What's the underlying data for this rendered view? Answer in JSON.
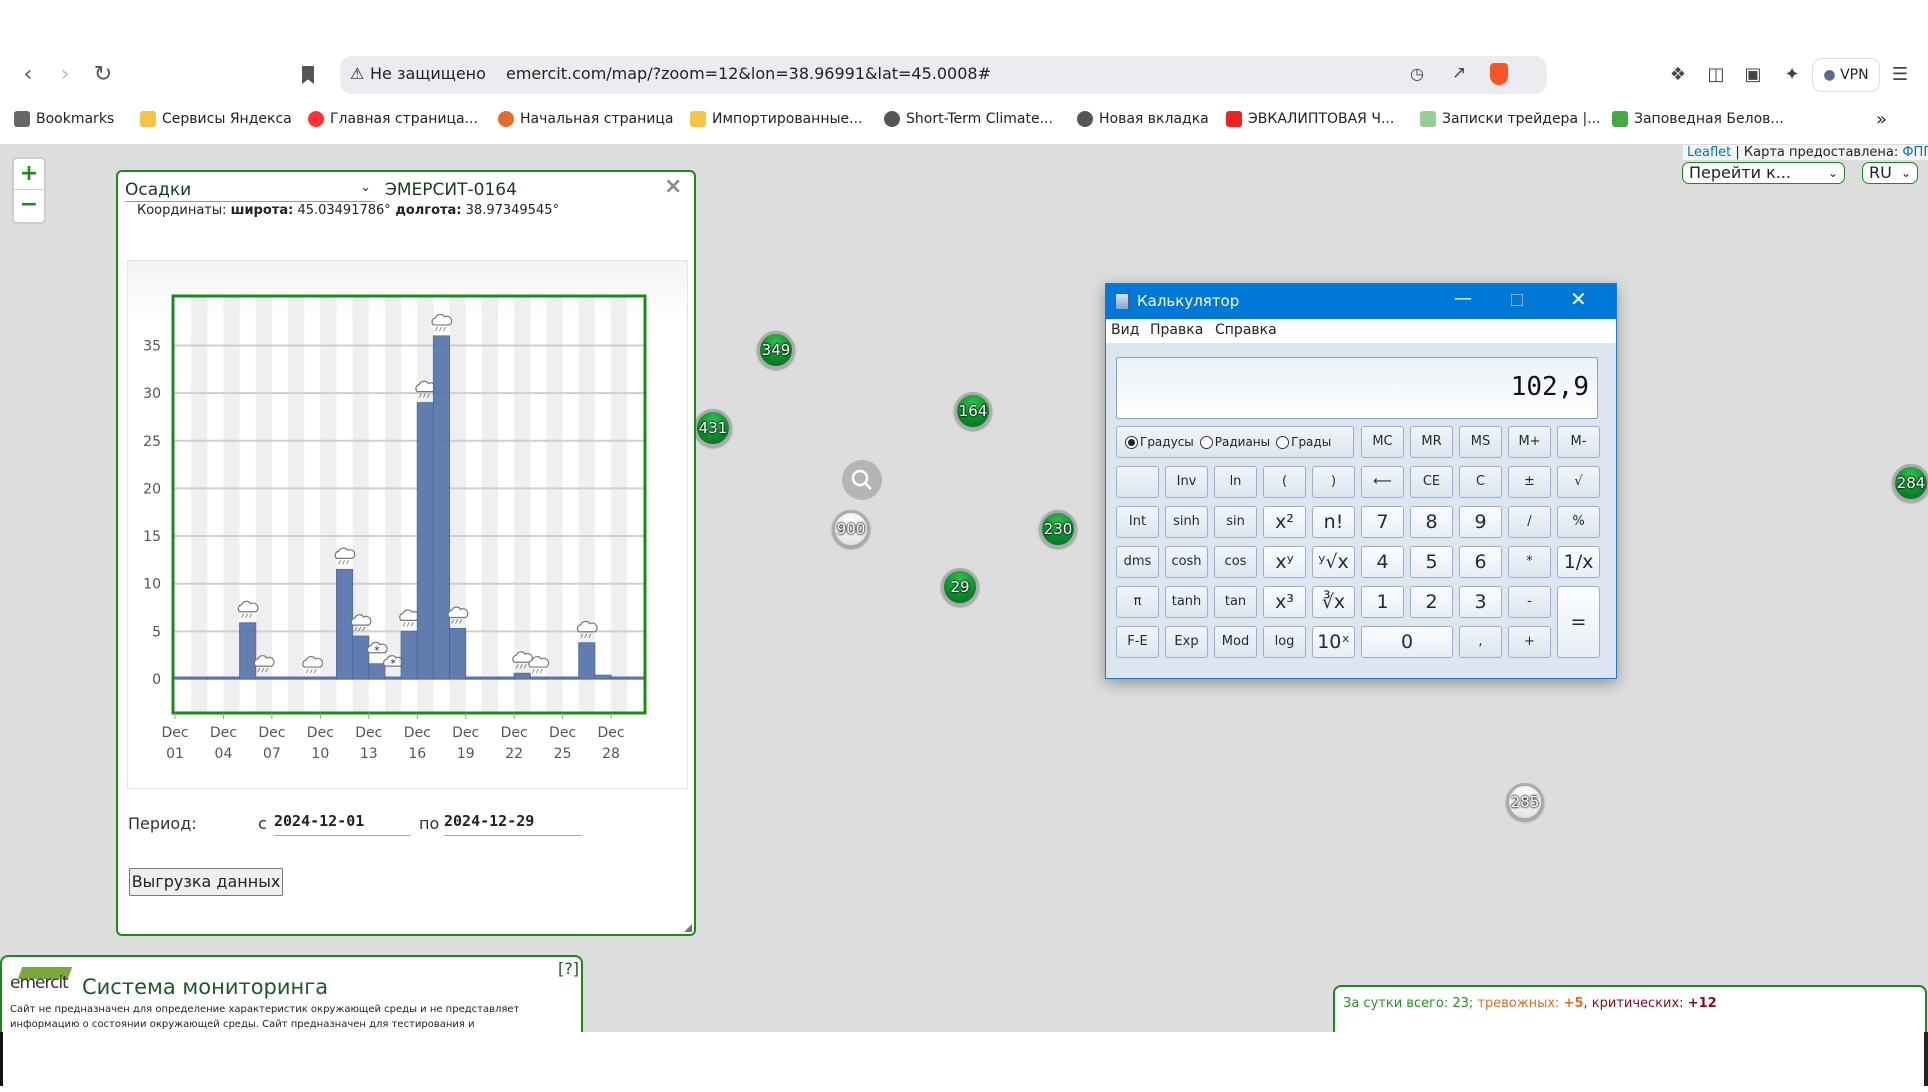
{
  "browser": {
    "security_label": "Не защищено",
    "url": "emercit.com/map/?zoom=12&lon=38.96991&lat=45.0008#",
    "vpn_label": "VPN",
    "bookmarks": [
      {
        "label": "Bookmarks",
        "icon": "book-icon"
      },
      {
        "label": "Сервисы Яндекса",
        "icon": "folder-icon"
      },
      {
        "label": "Главная страница...",
        "icon": "yandex-icon"
      },
      {
        "label": "Начальная страница",
        "icon": "firefox-icon"
      },
      {
        "label": "Импортированные...",
        "icon": "folder-icon"
      },
      {
        "label": "Short-Term Climate...",
        "icon": "globe-icon"
      },
      {
        "label": "Новая вкладка",
        "icon": "globe-icon"
      },
      {
        "label": "ЭВКАЛИПТОВАЯ Ч...",
        "icon": "flag-icon"
      },
      {
        "label": "Записки трейдера |...",
        "icon": "note-icon"
      },
      {
        "label": "Заповедная Белов...",
        "icon": "leaf-icon"
      }
    ],
    "more_label": "»"
  },
  "map": {
    "zoom_in": "+",
    "zoom_out": "−",
    "attribution_link": "Leaflet",
    "attribution_text": " | Карта предоставлена: ",
    "attribution_provider": "ФППД",
    "goto_select": "Перейти к...",
    "lang_select": "RU",
    "markers": [
      {
        "label": "349",
        "kind": "green"
      },
      {
        "label": "431",
        "kind": "green"
      },
      {
        "label": "164",
        "kind": "green"
      },
      {
        "label": "900",
        "kind": "white"
      },
      {
        "label": "230",
        "kind": "green"
      },
      {
        "label": "29",
        "kind": "green"
      },
      {
        "label": "284",
        "kind": "green"
      },
      {
        "label": "285",
        "kind": "white"
      }
    ]
  },
  "popup": {
    "parameter_select": "Осадки",
    "station": "ЭМЕРСИТ-0164",
    "coords_label": "Координаты: ",
    "lat_label": "широта:",
    "lat_value": " 45.03491786°",
    "lon_label": " долгота:",
    "lon_value": " 38.97349545°",
    "close": "×",
    "period_label": "Период:",
    "from_label": "с",
    "from_value": "2024-12-01",
    "to_label": "по",
    "to_value": "2024-12-29",
    "export_button": "Выгрузка данных"
  },
  "chart_data": {
    "type": "bar",
    "categories": [
      "Dec 01",
      "Dec 02",
      "Dec 03",
      "Dec 04",
      "Dec 05",
      "Dec 06",
      "Dec 07",
      "Dec 08",
      "Dec 09",
      "Dec 10",
      "Dec 11",
      "Dec 12",
      "Dec 13",
      "Dec 14",
      "Dec 15",
      "Dec 16",
      "Dec 17",
      "Dec 18",
      "Dec 19",
      "Dec 20",
      "Dec 21",
      "Dec 22",
      "Dec 23",
      "Dec 24",
      "Dec 25",
      "Dec 26",
      "Dec 27",
      "Dec 28",
      "Dec 29"
    ],
    "values": [
      0,
      0,
      0,
      0,
      5.9,
      0.2,
      0,
      0,
      0.1,
      0,
      11.5,
      4.5,
      1.6,
      0.2,
      5.0,
      29.0,
      36.0,
      5.3,
      0,
      0,
      0,
      0.6,
      0.1,
      0,
      0,
      3.8,
      0.4,
      0,
      0
    ],
    "weather_icons": [
      null,
      null,
      null,
      null,
      "rain",
      "rain",
      null,
      null,
      "rain",
      null,
      "rain",
      "rain",
      "snow",
      "snow",
      "rain",
      "rain",
      "rain",
      "rain",
      null,
      null,
      null,
      "rain",
      "rain",
      null,
      null,
      "rain",
      null,
      null,
      null
    ],
    "x_ticks": [
      {
        "top": "Dec",
        "bottom": "01"
      },
      {
        "top": "Dec",
        "bottom": "04"
      },
      {
        "top": "Dec",
        "bottom": "07"
      },
      {
        "top": "Dec",
        "bottom": "10"
      },
      {
        "top": "Dec",
        "bottom": "13"
      },
      {
        "top": "Dec",
        "bottom": "16"
      },
      {
        "top": "Dec",
        "bottom": "19"
      },
      {
        "top": "Dec",
        "bottom": "22"
      },
      {
        "top": "Dec",
        "bottom": "25"
      },
      {
        "top": "Dec",
        "bottom": "28"
      }
    ],
    "y_ticks": [
      "0",
      "5",
      "10",
      "15",
      "20",
      "25",
      "30",
      "35"
    ],
    "ylim": [
      -3.6,
      40.2
    ],
    "grid": true,
    "bar_color": "#5674aa",
    "frame_color": "#1a8a1a"
  },
  "calculator": {
    "title": "Калькулятор",
    "menu": [
      "Вид",
      "Правка",
      "Справка"
    ],
    "display": "102,9",
    "angle_modes": [
      {
        "label": "Градусы",
        "selected": true
      },
      {
        "label": "Радианы",
        "selected": false
      },
      {
        "label": "Грады",
        "selected": false
      }
    ],
    "rows": [
      [
        "MC",
        "MR",
        "MS",
        "M+",
        "M-"
      ],
      [
        "",
        "Inv",
        "ln",
        "(",
        ")",
        "⟵",
        "CE",
        "C",
        "±",
        "√"
      ],
      [
        "Int",
        "sinh",
        "sin",
        "x²",
        "n!",
        "7",
        "8",
        "9",
        "/",
        "%"
      ],
      [
        "dms",
        "cosh",
        "cos",
        "xʸ",
        "ʸ√x",
        "4",
        "5",
        "6",
        "*",
        "1/x"
      ],
      [
        "π",
        "tanh",
        "tan",
        "x³",
        "∛x",
        "1",
        "2",
        "3",
        "-",
        "="
      ],
      [
        "F-E",
        "Exp",
        "Mod",
        "log",
        "10ˣ",
        "0",
        ",",
        "+"
      ]
    ]
  },
  "info": {
    "logo_text": "emercit",
    "title": "Система мониторинга",
    "help": "[?]",
    "disclaimer": "Сайт не предназначен для определение характеристик окружающей среды и не представляет информацию о состоянии окружающей среды. Сайт предназначен для тестирования и настройки оборудования."
  },
  "status": {
    "total_label": "За сутки всего: 23; ",
    "alarm_label": "тревожных: ",
    "alarm_value": "+5",
    "sep": ", ",
    "critical_label": "критических: ",
    "critical_value": "+12",
    "colors": {
      "total": "#1a9a1a",
      "alarm": "#e07020",
      "critical": "#8b0a1a"
    }
  }
}
